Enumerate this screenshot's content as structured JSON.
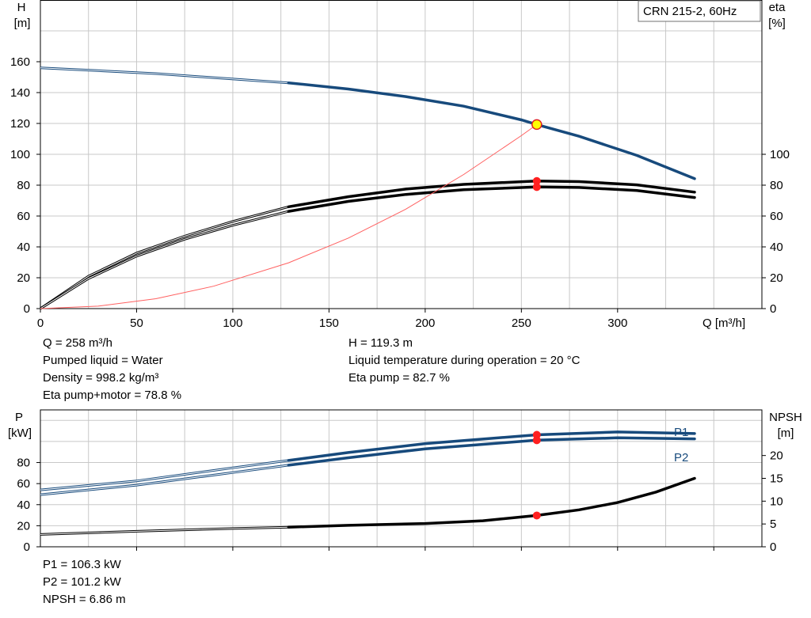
{
  "chart_data": [
    {
      "type": "line",
      "legend_box": "CRN 215-2, 60Hz",
      "xlabel": "Q [m³/h]",
      "ylabel_left": [
        "H",
        "[m]"
      ],
      "ylabel_right": [
        "eta",
        "[%]"
      ],
      "xlim": [
        0,
        375
      ],
      "ylim_left": [
        0,
        200
      ],
      "ylim_right": [
        0,
        100
      ],
      "xticks": [
        0,
        50,
        100,
        150,
        200,
        250,
        300
      ],
      "yticks_left": [
        0,
        20,
        40,
        60,
        80,
        100,
        120,
        140,
        160
      ],
      "yticks_right": [
        0,
        20,
        40,
        60,
        80,
        100
      ],
      "grid": true,
      "series": [
        {
          "key": "H",
          "axis": "left",
          "color": "#174a7c",
          "x": [
            0,
            30,
            60,
            90,
            129,
            160,
            190,
            220,
            250,
            258,
            280,
            310,
            340
          ],
          "y": [
            156,
            154.2,
            152.3,
            149.7,
            146.3,
            142.3,
            137.4,
            131.2,
            122.3,
            119.3,
            111.7,
            99.3,
            84.2
          ],
          "thin_until": 129
        },
        {
          "key": "eta_pump",
          "axis": "left",
          "color": "#000000",
          "x": [
            0,
            25,
            50,
            75,
            100,
            129,
            160,
            190,
            220,
            258,
            280,
            310,
            340
          ],
          "y": [
            0,
            21,
            36,
            47,
            56.5,
            66,
            72.5,
            77.5,
            80.5,
            82.7,
            82.3,
            80.2,
            75.5
          ],
          "thin_until": 129
        },
        {
          "key": "eta_pump_motor",
          "axis": "left",
          "color": "#000000",
          "x": [
            0,
            25,
            50,
            75,
            100,
            129,
            160,
            190,
            220,
            258,
            280,
            310,
            340
          ],
          "y": [
            0,
            19.5,
            34,
            45,
            54,
            63,
            69.5,
            74,
            77,
            78.8,
            78.5,
            76.5,
            72
          ],
          "thin_until": 129
        },
        {
          "key": "system",
          "axis": "left",
          "color": "#ff6060",
          "x": [
            0,
            30,
            60,
            90,
            129,
            160,
            190,
            220,
            250,
            258
          ],
          "y": [
            0,
            1.6,
            6.4,
            14.5,
            29.7,
            45.7,
            64.5,
            86.9,
            112.1,
            119.3
          ]
        }
      ],
      "operating_point": {
        "x": 258,
        "H": 119.3,
        "eta_pump": 82.7,
        "eta_pump_motor": 78.8
      },
      "info_left": [
        "Q = 258 m³/h",
        "Pumped liquid = Water",
        "Density = 998.2 kg/m³",
        "Eta pump+motor = 78.8 %"
      ],
      "info_right": [
        "H = 119.3 m",
        "Liquid temperature during operation = 20 °C",
        "Eta pump = 82.7 %"
      ]
    },
    {
      "type": "line",
      "ylabel_left": [
        "P",
        "[kW]"
      ],
      "ylabel_right": [
        "NPSH",
        "[m]"
      ],
      "xlim": [
        0,
        375
      ],
      "ylim_left": [
        0,
        130
      ],
      "ylim_right": [
        0,
        30
      ],
      "yticks_left": [
        0,
        20,
        40,
        60,
        80
      ],
      "yticks_right": [
        0,
        5,
        10,
        15,
        20
      ],
      "grid": true,
      "series": [
        {
          "key": "P1",
          "name": "P1",
          "axis": "left",
          "color": "#174a7c",
          "x": [
            0,
            50,
            100,
            129,
            160,
            200,
            258,
            300,
            340
          ],
          "y": [
            54,
            62.5,
            75,
            82,
            89.5,
            98,
            106.3,
            109,
            107.5
          ],
          "thin_until": 129
        },
        {
          "key": "P2",
          "name": "P2",
          "axis": "left",
          "color": "#174a7c",
          "x": [
            0,
            50,
            100,
            129,
            160,
            200,
            258,
            300,
            340
          ],
          "y": [
            49.5,
            58.5,
            70.5,
            77.5,
            84.5,
            93,
            101.2,
            103.5,
            102.5
          ],
          "thin_until": 129
        },
        {
          "key": "NPSH",
          "axis": "right",
          "color": "#000000",
          "x": [
            0,
            50,
            100,
            129,
            160,
            200,
            230,
            258,
            280,
            300,
            320,
            340
          ],
          "y": [
            2.7,
            3.4,
            4.0,
            4.3,
            4.7,
            5.1,
            5.7,
            6.86,
            8.1,
            9.7,
            12.0,
            15.0
          ],
          "thin_until": 129
        }
      ],
      "operating_point": {
        "x": 258,
        "P1": 106.3,
        "P2": 101.2,
        "NPSH": 6.86
      },
      "info_left": [
        "P1 = 106.3 kW",
        "P2 = 101.2 kW",
        "NPSH = 6.86 m"
      ]
    }
  ]
}
